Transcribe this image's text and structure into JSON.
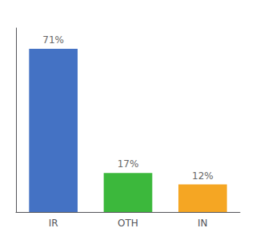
{
  "chart_data": {
    "type": "bar",
    "categories": [
      "IR",
      "OTH",
      "IN"
    ],
    "values": [
      71,
      17,
      12
    ],
    "value_labels": [
      "71%",
      "17%",
      "12%"
    ],
    "colors": [
      "#4472c4",
      "#3cb83c",
      "#f5a623"
    ],
    "ylim": [
      0,
      80
    ],
    "data_labels": true,
    "tick_labels": "x",
    "grid": false
  }
}
